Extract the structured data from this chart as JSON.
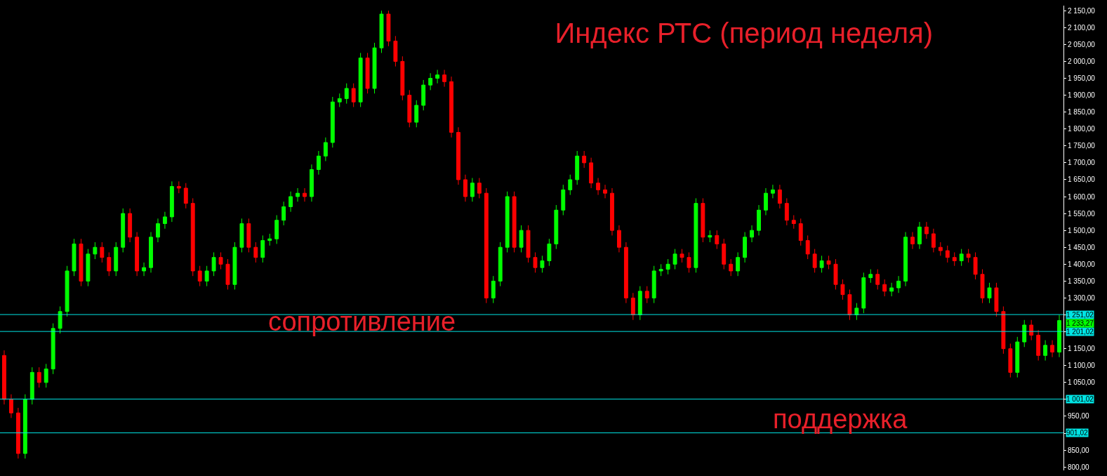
{
  "chart_data": {
    "type": "candlestick",
    "title": "Индекс РТС (период неделя)",
    "categories": [
      null,
      null,
      null,
      null,
      null,
      null,
      null,
      null,
      null,
      null,
      null,
      null,
      null,
      null,
      null,
      null,
      null,
      null,
      null,
      null,
      null,
      null,
      null,
      null,
      null,
      null,
      null,
      null,
      null,
      null,
      null,
      null,
      null,
      null,
      null,
      null,
      null,
      null,
      null,
      null,
      null,
      null,
      null,
      null,
      null,
      null,
      null,
      null,
      null,
      null,
      null,
      null,
      null,
      null,
      null,
      null,
      null,
      null,
      null,
      null,
      null,
      null,
      null,
      null,
      null,
      null,
      null,
      null,
      null,
      null,
      null,
      null,
      null,
      null,
      null,
      null,
      null,
      null,
      null,
      null,
      null,
      null,
      null,
      null,
      null,
      null,
      null,
      null,
      null,
      null,
      null,
      null,
      null,
      null,
      null,
      null,
      null,
      null,
      null,
      null,
      null,
      null,
      null,
      null,
      null,
      null,
      null,
      null,
      null,
      null,
      null,
      null,
      null,
      null,
      null,
      null,
      null,
      null,
      null,
      null,
      null,
      null,
      null,
      null,
      null,
      null,
      null,
      null,
      null,
      null,
      null,
      null,
      null,
      null,
      null,
      null,
      null,
      null,
      null,
      null,
      null,
      null,
      null,
      null,
      null,
      null,
      null,
      null,
      null,
      null,
      null,
      null
    ],
    "ohlc": [
      [
        1130,
        1145,
        985,
        1000
      ],
      [
        1000,
        1015,
        945,
        960
      ],
      [
        960,
        975,
        825,
        840
      ],
      [
        840,
        1015,
        825,
        1000
      ],
      [
        1000,
        1095,
        985,
        1080
      ],
      [
        1080,
        1095,
        1035,
        1050
      ],
      [
        1050,
        1105,
        1035,
        1090
      ],
      [
        1090,
        1225,
        1075,
        1210
      ],
      [
        1210,
        1275,
        1195,
        1260
      ],
      [
        1260,
        1395,
        1245,
        1380
      ],
      [
        1380,
        1475,
        1365,
        1460
      ],
      [
        1460,
        1475,
        1335,
        1350
      ],
      [
        1350,
        1445,
        1335,
        1430
      ],
      [
        1430,
        1465,
        1415,
        1450
      ],
      [
        1450,
        1465,
        1405,
        1420
      ],
      [
        1420,
        1435,
        1365,
        1380
      ],
      [
        1380,
        1465,
        1365,
        1450
      ],
      [
        1450,
        1565,
        1435,
        1550
      ],
      [
        1550,
        1565,
        1465,
        1480
      ],
      [
        1480,
        1495,
        1365,
        1380
      ],
      [
        1380,
        1405,
        1365,
        1390
      ],
      [
        1390,
        1495,
        1375,
        1480
      ],
      [
        1480,
        1535,
        1465,
        1520
      ],
      [
        1520,
        1555,
        1505,
        1540
      ],
      [
        1540,
        1645,
        1525,
        1630
      ],
      [
        1630,
        1645,
        1610,
        1625
      ],
      [
        1625,
        1640,
        1565,
        1580
      ],
      [
        1580,
        1595,
        1365,
        1380
      ],
      [
        1380,
        1395,
        1335,
        1350
      ],
      [
        1350,
        1395,
        1335,
        1380
      ],
      [
        1380,
        1435,
        1365,
        1420
      ],
      [
        1420,
        1435,
        1385,
        1400
      ],
      [
        1400,
        1415,
        1325,
        1340
      ],
      [
        1340,
        1465,
        1325,
        1450
      ],
      [
        1450,
        1535,
        1435,
        1520
      ],
      [
        1520,
        1535,
        1435,
        1450
      ],
      [
        1450,
        1465,
        1405,
        1420
      ],
      [
        1420,
        1485,
        1405,
        1470
      ],
      [
        1470,
        1490,
        1455,
        1475
      ],
      [
        1475,
        1545,
        1460,
        1530
      ],
      [
        1530,
        1585,
        1515,
        1570
      ],
      [
        1570,
        1615,
        1555,
        1600
      ],
      [
        1600,
        1625,
        1585,
        1610
      ],
      [
        1610,
        1625,
        1585,
        1600
      ],
      [
        1600,
        1695,
        1585,
        1680
      ],
      [
        1680,
        1735,
        1665,
        1720
      ],
      [
        1720,
        1775,
        1705,
        1760
      ],
      [
        1760,
        1895,
        1745,
        1880
      ],
      [
        1880,
        1905,
        1865,
        1890
      ],
      [
        1890,
        1935,
        1875,
        1920
      ],
      [
        1920,
        1935,
        1865,
        1880
      ],
      [
        1880,
        2025,
        1865,
        2010
      ],
      [
        2010,
        2025,
        1905,
        1920
      ],
      [
        1920,
        2055,
        1905,
        2040
      ],
      [
        2040,
        2150,
        2025,
        2140
      ],
      [
        2140,
        2150,
        2045,
        2060
      ],
      [
        2060,
        2075,
        1985,
        2000
      ],
      [
        2000,
        2015,
        1885,
        1900
      ],
      [
        1900,
        1915,
        1805,
        1820
      ],
      [
        1820,
        1885,
        1805,
        1870
      ],
      [
        1870,
        1945,
        1855,
        1930
      ],
      [
        1930,
        1965,
        1915,
        1950
      ],
      [
        1950,
        1975,
        1935,
        1960
      ],
      [
        1960,
        1975,
        1925,
        1940
      ],
      [
        1940,
        1955,
        1775,
        1790
      ],
      [
        1790,
        1805,
        1635,
        1650
      ],
      [
        1650,
        1665,
        1585,
        1600
      ],
      [
        1600,
        1655,
        1585,
        1640
      ],
      [
        1640,
        1655,
        1595,
        1610
      ],
      [
        1610,
        1625,
        1285,
        1300
      ],
      [
        1300,
        1365,
        1285,
        1350
      ],
      [
        1350,
        1465,
        1335,
        1450
      ],
      [
        1450,
        1615,
        1435,
        1600
      ],
      [
        1600,
        1615,
        1435,
        1450
      ],
      [
        1450,
        1515,
        1435,
        1500
      ],
      [
        1500,
        1515,
        1405,
        1420
      ],
      [
        1420,
        1435,
        1375,
        1390
      ],
      [
        1390,
        1425,
        1375,
        1410
      ],
      [
        1410,
        1475,
        1395,
        1460
      ],
      [
        1460,
        1575,
        1445,
        1560
      ],
      [
        1560,
        1635,
        1545,
        1620
      ],
      [
        1620,
        1665,
        1605,
        1650
      ],
      [
        1650,
        1735,
        1635,
        1720
      ],
      [
        1720,
        1735,
        1685,
        1700
      ],
      [
        1700,
        1715,
        1625,
        1640
      ],
      [
        1640,
        1655,
        1605,
        1620
      ],
      [
        1620,
        1635,
        1595,
        1610
      ],
      [
        1610,
        1625,
        1485,
        1500
      ],
      [
        1500,
        1515,
        1435,
        1450
      ],
      [
        1450,
        1465,
        1285,
        1300
      ],
      [
        1300,
        1315,
        1235,
        1250
      ],
      [
        1250,
        1335,
        1235,
        1320
      ],
      [
        1320,
        1335,
        1285,
        1300
      ],
      [
        1300,
        1395,
        1285,
        1380
      ],
      [
        1380,
        1400,
        1365,
        1385
      ],
      [
        1385,
        1415,
        1370,
        1400
      ],
      [
        1400,
        1445,
        1385,
        1430
      ],
      [
        1430,
        1445,
        1405,
        1420
      ],
      [
        1420,
        1435,
        1375,
        1390
      ],
      [
        1390,
        1595,
        1375,
        1580
      ],
      [
        1580,
        1595,
        1465,
        1480
      ],
      [
        1480,
        1500,
        1465,
        1485
      ],
      [
        1485,
        1500,
        1445,
        1460
      ],
      [
        1460,
        1475,
        1385,
        1400
      ],
      [
        1400,
        1415,
        1365,
        1380
      ],
      [
        1380,
        1435,
        1365,
        1420
      ],
      [
        1420,
        1495,
        1405,
        1480
      ],
      [
        1480,
        1515,
        1465,
        1500
      ],
      [
        1500,
        1575,
        1485,
        1560
      ],
      [
        1560,
        1625,
        1545,
        1610
      ],
      [
        1610,
        1635,
        1595,
        1620
      ],
      [
        1620,
        1635,
        1565,
        1580
      ],
      [
        1580,
        1595,
        1515,
        1530
      ],
      [
        1530,
        1545,
        1505,
        1520
      ],
      [
        1520,
        1535,
        1455,
        1470
      ],
      [
        1470,
        1485,
        1415,
        1430
      ],
      [
        1430,
        1445,
        1375,
        1390
      ],
      [
        1390,
        1425,
        1375,
        1410
      ],
      [
        1410,
        1425,
        1385,
        1400
      ],
      [
        1400,
        1415,
        1325,
        1340
      ],
      [
        1340,
        1355,
        1295,
        1310
      ],
      [
        1310,
        1325,
        1235,
        1250
      ],
      [
        1250,
        1285,
        1235,
        1270
      ],
      [
        1270,
        1375,
        1255,
        1360
      ],
      [
        1360,
        1385,
        1345,
        1370
      ],
      [
        1370,
        1385,
        1325,
        1340
      ],
      [
        1340,
        1355,
        1305,
        1320
      ],
      [
        1320,
        1345,
        1305,
        1330
      ],
      [
        1330,
        1365,
        1315,
        1350
      ],
      [
        1350,
        1495,
        1335,
        1480
      ],
      [
        1480,
        1495,
        1445,
        1460
      ],
      [
        1460,
        1525,
        1445,
        1510
      ],
      [
        1510,
        1525,
        1475,
        1490
      ],
      [
        1490,
        1505,
        1435,
        1450
      ],
      [
        1450,
        1465,
        1425,
        1440
      ],
      [
        1440,
        1455,
        1405,
        1420
      ],
      [
        1420,
        1435,
        1395,
        1410
      ],
      [
        1410,
        1445,
        1395,
        1430
      ],
      [
        1430,
        1445,
        1405,
        1420
      ],
      [
        1420,
        1435,
        1355,
        1370
      ],
      [
        1370,
        1385,
        1285,
        1300
      ],
      [
        1300,
        1345,
        1285,
        1330
      ],
      [
        1330,
        1345,
        1245,
        1260
      ],
      [
        1260,
        1275,
        1135,
        1150
      ],
      [
        1150,
        1165,
        1065,
        1080
      ],
      [
        1080,
        1185,
        1065,
        1170
      ],
      [
        1170,
        1235,
        1155,
        1220
      ],
      [
        1220,
        1235,
        1175,
        1190
      ],
      [
        1190,
        1205,
        1115,
        1130
      ],
      [
        1130,
        1175,
        1115,
        1160
      ],
      [
        1160,
        1175,
        1125,
        1140
      ],
      [
        1140,
        1250,
        1125,
        1233.27
      ]
    ],
    "colors": [
      "#ff0000",
      "#ff0000",
      "#ff0000",
      "#00ff00",
      "#00ff00",
      "#ff0000",
      "#00ff00",
      "#00ff00",
      "#00ff00",
      "#00ff00",
      "#00ff00",
      "#ff0000",
      "#00ff00",
      "#00ff00",
      "#ff0000",
      "#ff0000",
      "#00ff00",
      "#00ff00",
      "#ff0000",
      "#ff0000",
      "#00ff00",
      "#00ff00",
      "#00ff00",
      "#00ff00",
      "#00ff00",
      "#ff0000",
      "#ff0000",
      "#ff0000",
      "#ff0000",
      "#00ff00",
      "#00ff00",
      "#ff0000",
      "#ff0000",
      "#00ff00",
      "#00ff00",
      "#ff0000",
      "#ff0000",
      "#00ff00",
      "#00ff00",
      "#00ff00",
      "#00ff00",
      "#00ff00",
      "#00ff00",
      "#ff0000",
      "#00ff00",
      "#00ff00",
      "#00ff00",
      "#00ff00",
      "#00ff00",
      "#00ff00",
      "#ff0000",
      "#00ff00",
      "#ff0000",
      "#00ff00",
      "#00ff00",
      "#ff0000",
      "#ff0000",
      "#ff0000",
      "#ff0000",
      "#00ff00",
      "#00ff00",
      "#00ff00",
      "#00ff00",
      "#ff0000",
      "#ff0000",
      "#ff0000",
      "#ff0000",
      "#00ff00",
      "#ff0000",
      "#ff0000",
      "#00ff00",
      "#00ff00",
      "#00ff00",
      "#ff0000",
      "#00ff00",
      "#ff0000",
      "#ff0000",
      "#00ff00",
      "#00ff00",
      "#00ff00",
      "#00ff00",
      "#00ff00",
      "#00ff00",
      "#ff0000",
      "#ff0000",
      "#ff0000",
      "#ff0000",
      "#ff0000",
      "#ff0000",
      "#ff0000",
      "#ff0000",
      "#00ff00",
      "#ff0000",
      "#00ff00",
      "#00ff00",
      "#00ff00",
      "#00ff00",
      "#ff0000",
      "#ff0000",
      "#00ff00",
      "#ff0000",
      "#00ff00",
      "#ff0000",
      "#ff0000",
      "#ff0000",
      "#00ff00",
      "#00ff00",
      "#00ff00",
      "#00ff00",
      "#00ff00",
      "#00ff00",
      "#ff0000",
      "#ff0000",
      "#ff0000",
      "#ff0000",
      "#ff0000",
      "#ff0000",
      "#00ff00",
      "#ff0000",
      "#ff0000",
      "#ff0000",
      "#ff0000",
      "#00ff00",
      "#00ff00",
      "#00ff00",
      "#ff0000",
      "#ff0000",
      "#00ff00",
      "#00ff00",
      "#00ff00",
      "#ff0000",
      "#00ff00",
      "#ff0000",
      "#ff0000",
      "#ff0000",
      "#ff0000",
      "#ff0000",
      "#00ff00",
      "#ff0000",
      "#ff0000",
      "#ff0000",
      "#00ff00",
      "#ff0000",
      "#ff0000",
      "#ff0000",
      "#00ff00",
      "#00ff00",
      "#ff0000",
      "#ff0000",
      "#00ff00",
      "#ff0000",
      "#00ff00"
    ],
    "ylim": [
      790,
      2165
    ],
    "yticks": [
      {
        "value": 800,
        "label": "800,00"
      },
      {
        "value": 850,
        "label": "850,00"
      },
      {
        "value": 900,
        "label": null
      },
      {
        "value": 950,
        "label": "950,00"
      },
      {
        "value": 1000,
        "label": null
      },
      {
        "value": 1050,
        "label": "1 050,00"
      },
      {
        "value": 1100,
        "label": "1 100,00"
      },
      {
        "value": 1150,
        "label": "1 150,00"
      },
      {
        "value": 1200,
        "label": null
      },
      {
        "value": 1250,
        "label": null
      },
      {
        "value": 1300,
        "label": "1 300,00"
      },
      {
        "value": 1350,
        "label": "1 350,00"
      },
      {
        "value": 1400,
        "label": "1 400,00"
      },
      {
        "value": 1450,
        "label": "1 450,00"
      },
      {
        "value": 1500,
        "label": "1 500,00"
      },
      {
        "value": 1550,
        "label": "1 550,00"
      },
      {
        "value": 1600,
        "label": "1 600,00"
      },
      {
        "value": 1650,
        "label": "1 650,00"
      },
      {
        "value": 1700,
        "label": "1 700,00"
      },
      {
        "value": 1750,
        "label": "1 750,00"
      },
      {
        "value": 1800,
        "label": "1 800,00"
      },
      {
        "value": 1850,
        "label": "1 850,00"
      },
      {
        "value": 1900,
        "label": "1 900,00"
      },
      {
        "value": 1950,
        "label": "1 950,00"
      },
      {
        "value": 2000,
        "label": "2 000,00"
      },
      {
        "value": 2050,
        "label": "2 050,00"
      },
      {
        "value": 2100,
        "label": "2 100,00"
      },
      {
        "value": 2150,
        "label": "2 150,00"
      }
    ],
    "tick_labels": "y",
    "ref_lines": [
      {
        "axis": "y",
        "value": 1251.02,
        "label": "1 251,02",
        "color": "#00e5e5"
      },
      {
        "axis": "y",
        "value": 1201.02,
        "label": "1 201,02",
        "color": "#00e5e5"
      },
      {
        "axis": "y",
        "value": 1001.02,
        "label": "1 001,02",
        "color": "#00e5e5"
      },
      {
        "axis": "y",
        "value": 901.02,
        "label": "901,02",
        "color": "#00e5e5"
      }
    ],
    "annotations": [
      "сопротивление",
      "поддержка",
      "1 233,27"
    ]
  }
}
